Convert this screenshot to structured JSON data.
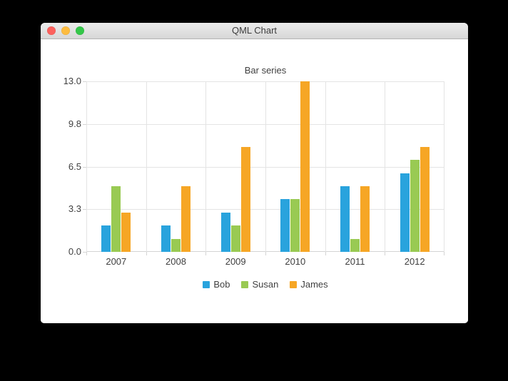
{
  "window": {
    "title": "QML Chart",
    "controls": {
      "close": "close",
      "minimize": "minimize",
      "zoom": "zoom"
    }
  },
  "chart_data": {
    "type": "bar",
    "title": "Bar series",
    "categories": [
      "2007",
      "2008",
      "2009",
      "2010",
      "2011",
      "2012"
    ],
    "series": [
      {
        "name": "Bob",
        "color": "#29a3dd",
        "values": [
          2,
          2,
          3,
          4,
          5,
          6
        ]
      },
      {
        "name": "Susan",
        "color": "#99ca53",
        "values": [
          5,
          1,
          2,
          4,
          1,
          7
        ]
      },
      {
        "name": "James",
        "color": "#f6a625",
        "values": [
          3,
          5,
          8,
          13,
          5,
          8
        ]
      }
    ],
    "ylim": [
      0,
      13
    ],
    "y_ticks_top_to_bottom": [
      "13.0",
      "9.8",
      "6.5",
      "3.3",
      "0.0"
    ],
    "grid": true,
    "legend_position": "bottom"
  },
  "colors": {
    "traffic_red": "#fc615d",
    "traffic_yellow": "#fdbc40",
    "traffic_green": "#34c749",
    "gridline": "#e4e4e4",
    "axis": "#d4d4d4",
    "label": "#404040",
    "window_background": "#ffffff",
    "desktop_background": "#000000"
  }
}
